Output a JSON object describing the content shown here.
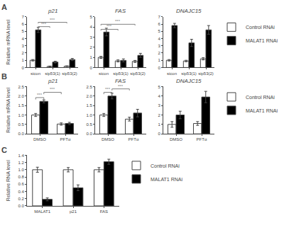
{
  "chart_data": [
    {
      "type": "bar",
      "title": "p21",
      "ylabel": "Relative mRNA level",
      "categories": [
        "sicon",
        "sip53(1)",
        "sip53(2)"
      ],
      "series": [
        {
          "name": "Control RNAi",
          "color": "white",
          "values": [
            1.0,
            0.15,
            0.18
          ],
          "errors": [
            0.1,
            0.05,
            0.05
          ]
        },
        {
          "name": "MALAT1 RNAi",
          "color": "black",
          "values": [
            5.2,
            0.75,
            1.1
          ],
          "errors": [
            0.35,
            0.12,
            0.15
          ]
        }
      ],
      "ylim": [
        0,
        7
      ],
      "yticks": [
        0,
        1,
        2,
        3,
        4,
        5,
        6,
        7
      ],
      "grid": false,
      "annotations": [
        {
          "text": "A"
        },
        {
          "text": "***",
          "color": "gray",
          "between": [
            [
              "sicon",
              "MALAT1 RNAi"
            ],
            [
              "sip53(1)",
              "Control RNAi"
            ]
          ],
          "y": [
            5.5,
            5.65
          ]
        },
        {
          "text": "***",
          "color": "gray",
          "between": [
            [
              "sicon",
              "MALAT1 RNAi"
            ],
            [
              "sip53(2)",
              "Control RNAi"
            ]
          ],
          "y": [
            6.1,
            6.25
          ]
        }
      ]
    },
    {
      "type": "bar",
      "title": "FAS",
      "categories": [
        "sicon",
        "sip53(1)",
        "sip53(2)"
      ],
      "series": [
        {
          "name": "Control RNAi",
          "color": "white",
          "values": [
            1.0,
            0.65,
            0.6
          ],
          "errors": [
            0.1,
            0.1,
            0.1
          ]
        },
        {
          "name": "MALAT1 RNAi",
          "color": "black",
          "values": [
            3.5,
            0.7,
            1.2
          ],
          "errors": [
            0.38,
            0.15,
            0.2
          ]
        }
      ],
      "ylim": [
        0,
        5
      ],
      "yticks": [
        0,
        1,
        2,
        3,
        4,
        5
      ],
      "grid": false,
      "annotations": [
        {
          "text": "***",
          "color": "gray",
          "between": [
            [
              "sicon",
              "Control RNAi"
            ],
            [
              "sip53(1)",
              "Control RNAi"
            ]
          ],
          "y": [
            3.65,
            3.77
          ]
        },
        {
          "text": "***",
          "color": "gray",
          "between": [
            [
              "sicon",
              "Control RNAi"
            ],
            [
              "sip53(2)",
              "Control RNAi"
            ]
          ],
          "y": [
            4.15,
            4.27
          ]
        }
      ]
    },
    {
      "type": "bar",
      "title": "DNAJC15",
      "categories": [
        "sicon",
        "sip53(1)",
        "sip53(2)"
      ],
      "series": [
        {
          "name": "Control RNAi",
          "color": "white",
          "values": [
            1.0,
            0.9,
            1.2
          ],
          "errors": [
            0.1,
            0.1,
            0.15
          ]
        },
        {
          "name": "MALAT1 RNAi",
          "color": "black",
          "values": [
            5.8,
            3.4,
            5.2
          ],
          "errors": [
            0.3,
            0.5,
            0.6
          ]
        }
      ],
      "ylim": [
        0,
        7
      ],
      "yticks": [
        0,
        1,
        2,
        3,
        4,
        5,
        6,
        7
      ],
      "grid": false,
      "legend": "right"
    },
    {
      "type": "bar",
      "title": "p21",
      "ylabel": "Relative mRNA level",
      "categories": [
        "DMSO",
        "PFTα"
      ],
      "series": [
        {
          "name": "Control RNAi",
          "color": "white",
          "values": [
            1.0,
            0.52
          ],
          "errors": [
            0.08,
            0.06
          ]
        },
        {
          "name": "MALAT1 RNAi",
          "color": "black",
          "values": [
            1.72,
            0.55
          ],
          "errors": [
            0.08,
            0.06
          ]
        }
      ],
      "ylim": [
        0,
        2.5
      ],
      "yticks": [
        {
          "value": 0,
          "label": "0.0"
        },
        0.5,
        {
          "value": 1,
          "label": "1.0"
        },
        1.5,
        {
          "value": 2,
          "label": "2.0"
        },
        2.5
      ],
      "grid": false,
      "annotations": [
        {
          "text": "B"
        },
        {
          "text": "***",
          "color": "gray",
          "between": [
            [
              "DMSO",
              "Control RNAi"
            ],
            [
              "DMSO",
              "MALAT1 RNAi"
            ]
          ],
          "y": [
            1.82,
            1.92
          ]
        },
        {
          "text": "***",
          "color": "gray",
          "between": [
            [
              "DMSO",
              "MALAT1 RNAi"
            ],
            [
              "PFTα",
              "Control RNAi"
            ]
          ],
          "y": [
            2.1,
            2.2
          ]
        }
      ]
    },
    {
      "type": "bar",
      "title": "FAS",
      "categories": [
        "DMSO",
        "PFTα"
      ],
      "series": [
        {
          "name": "Control RNAi",
          "color": "white",
          "values": [
            1.0,
            0.78
          ],
          "errors": [
            0.08,
            0.1
          ]
        },
        {
          "name": "MALAT1 RNAi",
          "color": "black",
          "values": [
            2.0,
            1.1
          ],
          "errors": [
            0.15,
            0.2
          ]
        }
      ],
      "ylim": [
        0,
        2.5
      ],
      "yticks": [
        {
          "value": 0,
          "label": "0.0"
        },
        0.5,
        {
          "value": 1,
          "label": "1.0"
        },
        1.5,
        {
          "value": 2,
          "label": "2.0"
        },
        2.5
      ],
      "grid": false,
      "annotations": [
        {
          "text": "***",
          "color": "gray",
          "between": [
            [
              "DMSO",
              "Control RNAi"
            ],
            [
              "DMSO",
              "MALAT1 RNAi"
            ]
          ],
          "y": [
            2.1,
            2.2
          ]
        },
        {
          "text": "***",
          "color": "gray",
          "between": [
            [
              "DMSO",
              "MALAT1 RNAi"
            ],
            [
              "PFTα",
              "Control RNAi"
            ]
          ],
          "y": [
            2.3,
            2.38
          ]
        }
      ]
    },
    {
      "type": "bar",
      "title": "DNAJC15",
      "categories": [
        "DMSO",
        "PFTα"
      ],
      "series": [
        {
          "name": "Control RNAi",
          "color": "white",
          "values": [
            1.0,
            1.1
          ],
          "errors": [
            0.3,
            0.2
          ]
        },
        {
          "name": "MALAT1 RNAi",
          "color": "black",
          "values": [
            2.0,
            3.9
          ],
          "errors": [
            0.4,
            0.6
          ]
        }
      ],
      "ylim": [
        0,
        5
      ],
      "yticks": [
        0,
        1,
        2,
        3,
        4,
        5
      ],
      "grid": false,
      "legend": "right"
    },
    {
      "type": "bar",
      "ylabel": "Relative RNA level",
      "categories": [
        "MALAT1",
        "p21",
        "FAS"
      ],
      "series": [
        {
          "name": "Control RNAi",
          "color": "white",
          "values": [
            1.0,
            1.0,
            1.0
          ],
          "errors": [
            0.07,
            0.06,
            0.06
          ]
        },
        {
          "name": "MALAT1 RNAi",
          "color": "black",
          "values": [
            0.18,
            0.5,
            1.22
          ],
          "errors": [
            0.04,
            0.08,
            0.07
          ]
        }
      ],
      "ylim": [
        0,
        1.4
      ],
      "yticks": [
        {
          "value": 0,
          "label": "0.0"
        },
        0.2,
        0.4,
        0.6,
        0.8,
        {
          "value": 1,
          "label": "1.0"
        },
        1.2,
        1.4
      ],
      "grid": false,
      "legend": "right",
      "annotations": [
        {
          "text": "C"
        }
      ]
    }
  ]
}
